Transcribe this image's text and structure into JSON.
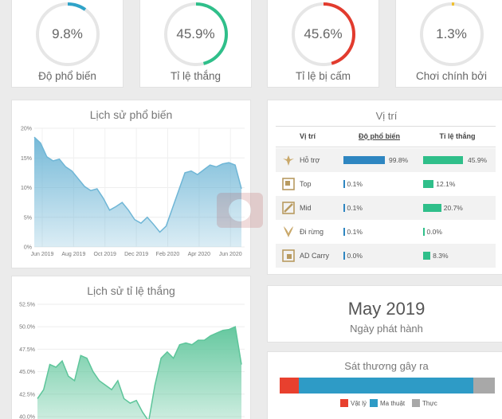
{
  "stats": [
    {
      "value": "9.8%",
      "label": "Độ phổ biến",
      "percent": 9.8,
      "color": "#2fa3c8"
    },
    {
      "value": "45.9%",
      "label": "Tỉ lệ thắng",
      "percent": 45.9,
      "color": "#2fbf8a"
    },
    {
      "value": "45.6%",
      "label": "Tỉ lệ bị cấm",
      "percent": 45.6,
      "color": "#e23b2e"
    },
    {
      "value": "1.3%",
      "label": "Chơi chính bởi",
      "percent": 1.3,
      "color": "#f0c030"
    }
  ],
  "popularity_chart": {
    "title": "Lịch sử phổ biến",
    "chart_data": {
      "type": "area",
      "yticks": [
        "20%",
        "15%",
        "10%",
        "5%",
        "0%"
      ],
      "ylim": [
        0,
        20
      ],
      "xticks": [
        "Jun 2019",
        "Aug 2019",
        "Oct 2019",
        "Dec 2019",
        "Feb 2020",
        "Apr 2020",
        "Jun 2020"
      ],
      "values": [
        18.5,
        17.5,
        15.2,
        14.5,
        14.8,
        13.5,
        12.8,
        11.5,
        10.2,
        9.5,
        9.8,
        8.2,
        6.2,
        6.8,
        7.5,
        6.2,
        4.6,
        4.0,
        5.0,
        3.8,
        2.5,
        3.5,
        6.5,
        9.5,
        12.5,
        12.8,
        12.2,
        13.0,
        13.8,
        13.5,
        14.0,
        14.2,
        13.8,
        9.8
      ],
      "color": "#6fb6d6"
    }
  },
  "winrate_chart": {
    "title": "Lịch sử tỉ lệ thắng",
    "chart_data": {
      "type": "area",
      "yticks": [
        "52.5%",
        "50.0%",
        "47.5%",
        "45.0%",
        "42.5%",
        "40.0%"
      ],
      "ylim": [
        40,
        52.5
      ],
      "values": [
        42.0,
        43.0,
        45.8,
        45.5,
        46.2,
        44.5,
        44.0,
        46.8,
        46.5,
        45.0,
        44.0,
        43.5,
        43.0,
        44.0,
        42.0,
        41.5,
        41.8,
        40.5,
        39.5,
        43.5,
        46.5,
        47.2,
        46.5,
        48.0,
        48.2,
        48.0,
        48.5,
        48.5,
        49.0,
        49.3,
        49.6,
        49.7,
        50.0,
        45.8
      ],
      "color": "#5dc59a"
    }
  },
  "position": {
    "title": "Vị trí",
    "headers": [
      "Vị trí",
      "Độ phổ biến",
      "Tỉ lệ thắng"
    ],
    "rows": [
      {
        "role": "Hỗ trợ",
        "pop": "99.8%",
        "pop_pct": 99.8,
        "win": "45.9%",
        "win_pct": 45.9
      },
      {
        "role": "Top",
        "pop": "0.1%",
        "pop_pct": 0.1,
        "win": "12.1%",
        "win_pct": 12.1
      },
      {
        "role": "Mid",
        "pop": "0.1%",
        "pop_pct": 0.1,
        "win": "20.7%",
        "win_pct": 20.7
      },
      {
        "role": "Đi rừng",
        "pop": "0.1%",
        "pop_pct": 0.1,
        "win": "0.0%",
        "win_pct": 0.0
      },
      {
        "role": "AD Carry",
        "pop": "0.0%",
        "pop_pct": 0.0,
        "win": "8.3%",
        "win_pct": 8.3
      }
    ]
  },
  "release": {
    "date": "May 2019",
    "label": "Ngày phát hành"
  },
  "damage": {
    "title": "Sát thương gây ra",
    "physical_pct": 9,
    "magic_pct": 81,
    "true_pct": 10,
    "legend": [
      "Vật lý",
      "Ma thuật",
      "Thực"
    ],
    "colors": [
      "#e8402e",
      "#2e9bc6",
      "#a8a8a8"
    ]
  },
  "colors": {
    "pop_bar": "#2e86c1",
    "win_bar": "#2fbf8a"
  }
}
